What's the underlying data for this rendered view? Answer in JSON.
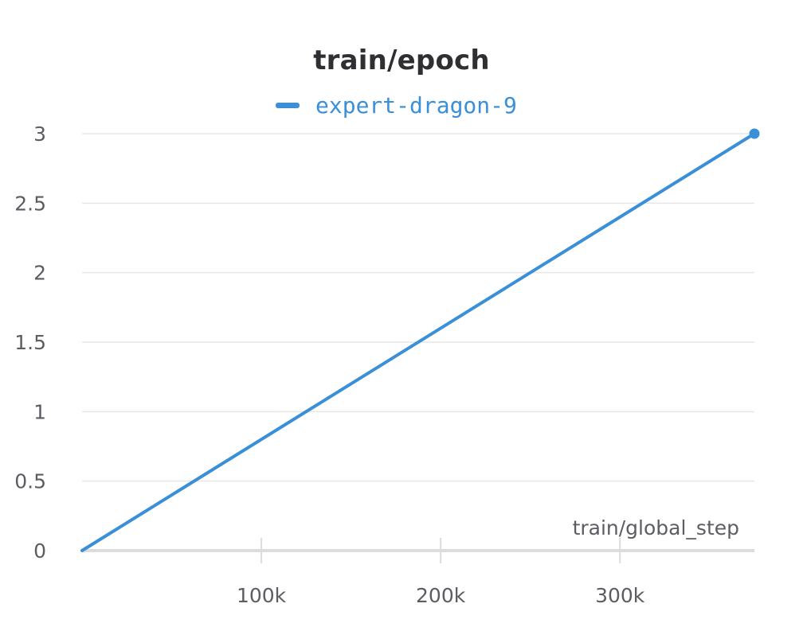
{
  "chart_data": {
    "type": "line",
    "title": "train/epoch",
    "xlabel": "train/global_step",
    "ylabel": "",
    "xlim": [
      0,
      375000
    ],
    "ylim": [
      0,
      3
    ],
    "x_ticks": [
      100000,
      200000,
      300000
    ],
    "x_tick_labels": [
      "100k",
      "200k",
      "300k"
    ],
    "y_ticks": [
      0,
      0.5,
      1,
      1.5,
      2,
      2.5,
      3
    ],
    "y_tick_labels": [
      "0",
      "0.5",
      "1",
      "1.5",
      "2",
      "2.5",
      "3"
    ],
    "grid": true,
    "legend_position": "top-center",
    "series": [
      {
        "name": "expert-dragon-9",
        "color": "#3a8fd9",
        "x": [
          0,
          375000
        ],
        "y": [
          0,
          3
        ]
      }
    ]
  }
}
